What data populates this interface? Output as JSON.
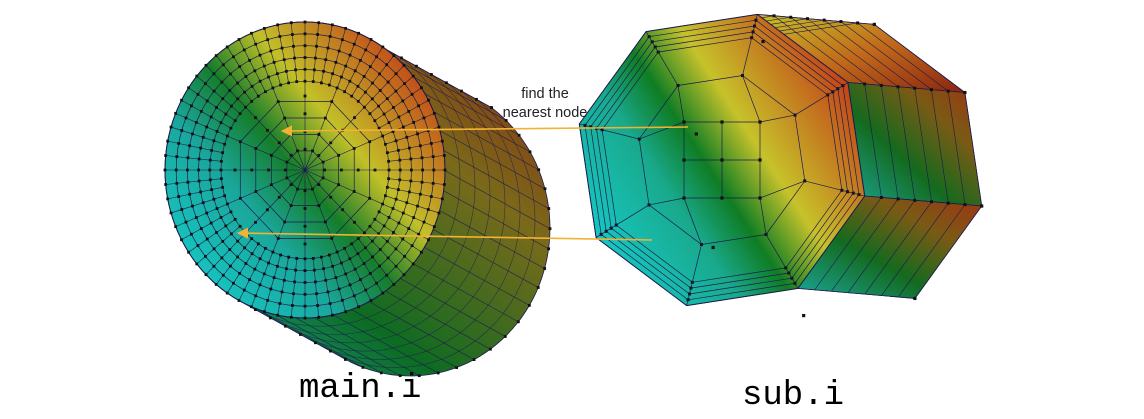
{
  "figure": {
    "annotation_line1": "find the",
    "annotation_line2": "nearest node",
    "left_mesh_label": "main.i",
    "right_mesh_label": "sub.i"
  },
  "colors": {
    "arrow": "#f2b233",
    "mesh_line": "#1a1a50",
    "node": "#111111",
    "cyan": "#16c9c6",
    "green": "#0f7d24",
    "yellow": "#c9c426",
    "red": "#c23a16"
  }
}
